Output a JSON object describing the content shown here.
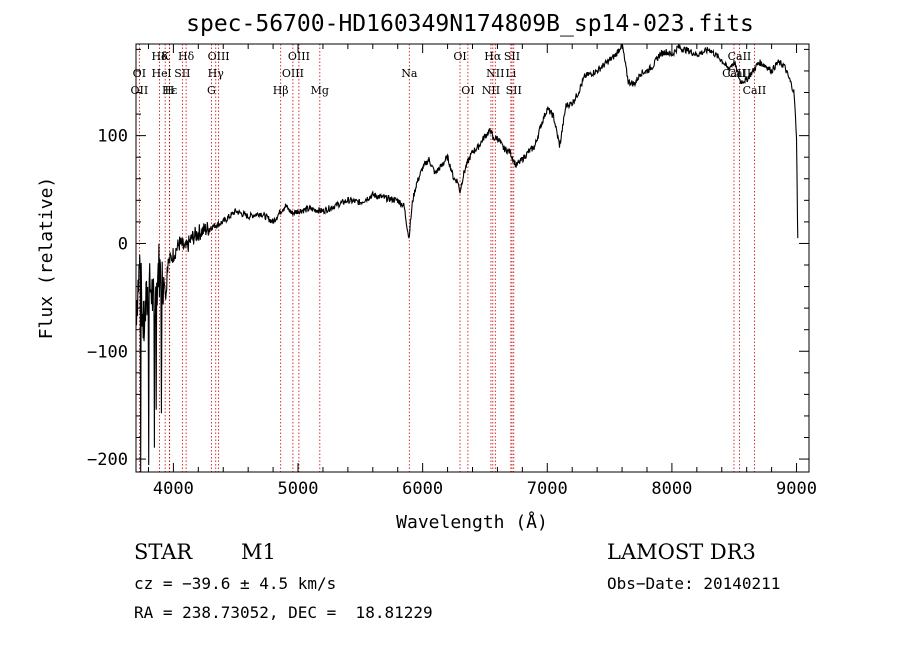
{
  "chart_data": {
    "type": "line",
    "title": "spec-56700-HD160349N174809B_sp14-023.fits",
    "xlabel": "Wavelength (Å)",
    "ylabel": "Flux (relative)",
    "xlim": [
      3700,
      9100
    ],
    "ylim": [
      -212,
      185
    ],
    "xticks": [
      4000,
      5000,
      6000,
      7000,
      8000,
      9000
    ],
    "yticks": [
      -200,
      -100,
      0,
      100
    ],
    "line_color": "#000000",
    "marker_color": "#cc0000",
    "spectrum": {
      "x": [
        3700,
        3730,
        3760,
        3790,
        3820,
        3850,
        3880,
        3910,
        3950,
        4000,
        4050,
        4100,
        4150,
        4200,
        4300,
        4400,
        4500,
        4600,
        4700,
        4800,
        4860,
        4900,
        4950,
        5000,
        5100,
        5200,
        5300,
        5400,
        5500,
        5600,
        5700,
        5800,
        5850,
        5890,
        5920,
        5950,
        6000,
        6050,
        6100,
        6150,
        6200,
        6250,
        6280,
        6300,
        6330,
        6360,
        6400,
        6450,
        6500,
        6550,
        6563,
        6600,
        6650,
        6700,
        6750,
        6800,
        6850,
        6900,
        6950,
        7000,
        7050,
        7100,
        7150,
        7200,
        7250,
        7300,
        7400,
        7500,
        7550,
        7600,
        7650,
        7700,
        7750,
        7800,
        7850,
        7900,
        7950,
        8000,
        8050,
        8100,
        8150,
        8200,
        8300,
        8400,
        8450,
        8500,
        8550,
        8600,
        8650,
        8700,
        8750,
        8800,
        8850,
        8900,
        8950,
        8980,
        9000,
        9010
      ],
      "y": [
        -60,
        -20,
        -80,
        -50,
        -40,
        -65,
        -20,
        -35,
        -20,
        -10,
        0,
        -5,
        5,
        10,
        15,
        20,
        30,
        25,
        28,
        20,
        30,
        35,
        28,
        30,
        32,
        30,
        35,
        40,
        38,
        45,
        42,
        40,
        35,
        5,
        40,
        55,
        70,
        78,
        65,
        72,
        80,
        60,
        58,
        48,
        65,
        75,
        85,
        90,
        100,
        105,
        97,
        98,
        88,
        85,
        72,
        78,
        85,
        90,
        110,
        125,
        118,
        90,
        128,
        130,
        140,
        155,
        160,
        170,
        175,
        185,
        150,
        148,
        158,
        160,
        165,
        175,
        178,
        175,
        182,
        180,
        178,
        175,
        180,
        170,
        162,
        168,
        150,
        152,
        160,
        168,
        165,
        160,
        168,
        165,
        150,
        140,
        100,
        5
      ]
    },
    "lines": [
      {
        "name": "Hδ",
        "x": 3889,
        "row": 1
      },
      {
        "name": "K",
        "x": 3934,
        "row": 1
      },
      {
        "name": "Hδ",
        "x": 4102,
        "row": 1
      },
      {
        "name": "OIII",
        "x": 4363,
        "row": 1
      },
      {
        "name": "OIII",
        "x": 5007,
        "row": 1
      },
      {
        "name": "OI",
        "x": 6300,
        "row": 1
      },
      {
        "name": "Hα",
        "x": 6563,
        "row": 1
      },
      {
        "name": "SII",
        "x": 6717,
        "row": 1
      },
      {
        "name": "CaII",
        "x": 8542,
        "row": 1
      },
      {
        "name": "OI",
        "x": 3727,
        "row": 2
      },
      {
        "name": "He",
        "x": 3889,
        "row": 2
      },
      {
        "name": "I",
        "x": 3968,
        "row": 2
      },
      {
        "name": "SII",
        "x": 4072,
        "row": 2
      },
      {
        "name": "Hγ",
        "x": 4340,
        "row": 2
      },
      {
        "name": "OIII",
        "x": 4959,
        "row": 2
      },
      {
        "name": "Na",
        "x": 5893,
        "row": 2
      },
      {
        "name": "NII",
        "x": 6583,
        "row": 2
      },
      {
        "name": "Li",
        "x": 6708,
        "row": 2
      },
      {
        "name": "CaII",
        "x": 8498,
        "row": 2
      },
      {
        "name": "CaII",
        "x": 8542,
        "row": 2
      },
      {
        "name": "OII",
        "x": 3727,
        "row": 3
      },
      {
        "name": "Hε",
        "x": 3970,
        "row": 3
      },
      {
        "name": "H",
        "x": 3968,
        "row": 3
      },
      {
        "name": "G",
        "x": 4305,
        "row": 3
      },
      {
        "name": "Hβ",
        "x": 4861,
        "row": 3
      },
      {
        "name": "Mg",
        "x": 5175,
        "row": 3
      },
      {
        "name": "OI",
        "x": 6363,
        "row": 3
      },
      {
        "name": "NII",
        "x": 6548,
        "row": 3
      },
      {
        "name": "SII",
        "x": 6731,
        "row": 3
      },
      {
        "name": "CaII",
        "x": 8662,
        "row": 3
      }
    ]
  },
  "info": {
    "object_class": "STAR",
    "subclass": "M1",
    "survey": "LAMOST DR3",
    "velocity": "cz = −39.6 ± 4.5 km/s",
    "obs_date": "Obs−Date: 20140211",
    "coords": "RA = 238.73052, DEC =  18.81229"
  }
}
